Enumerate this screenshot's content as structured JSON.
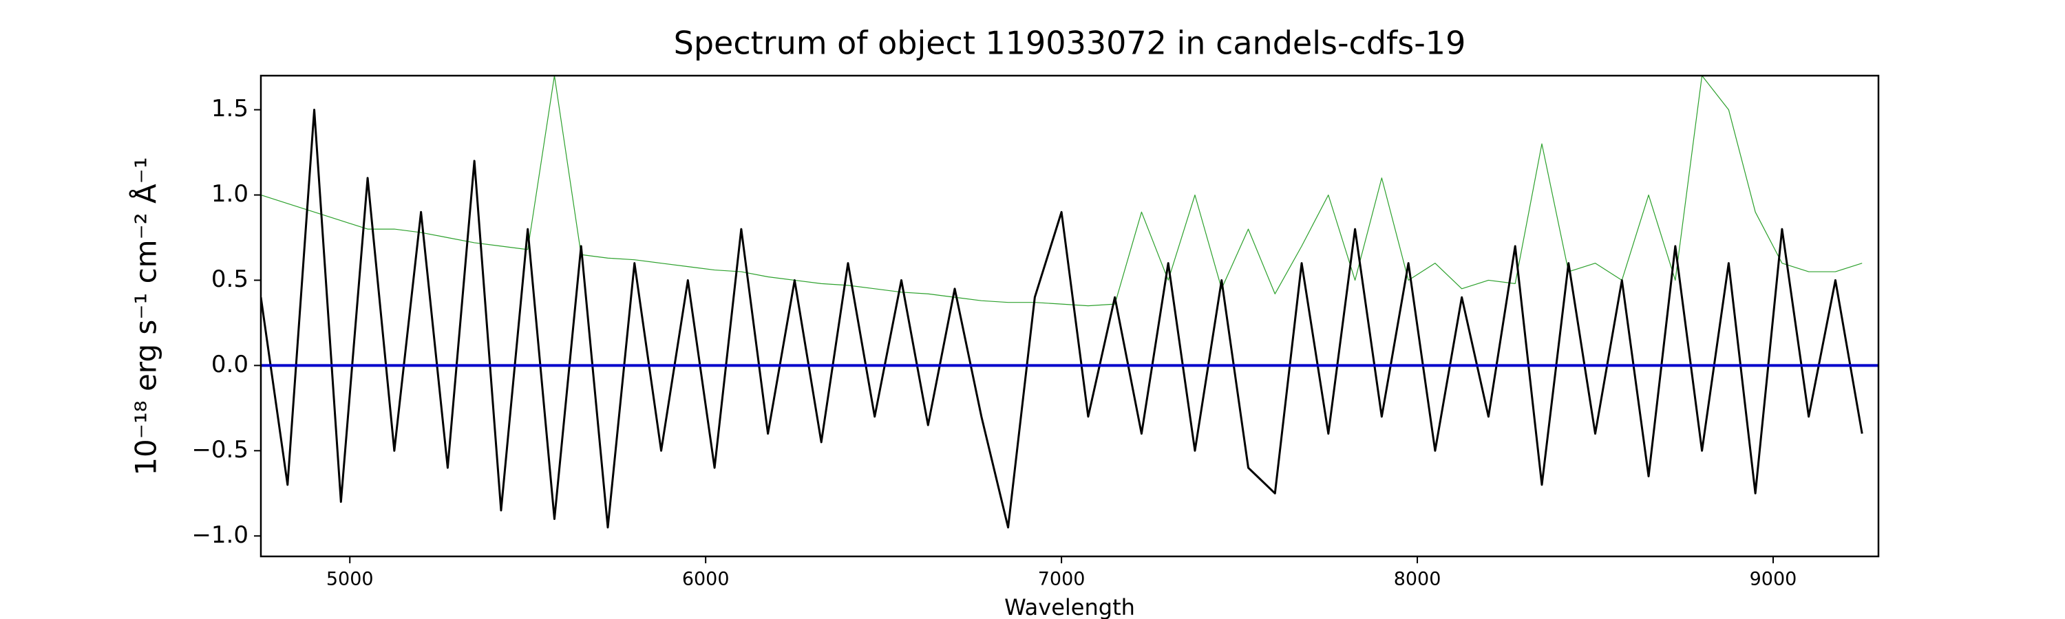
{
  "chart_data": {
    "type": "line",
    "title": "Spectrum of object 119033072 in candels-cdfs-19",
    "xlabel": "Wavelength",
    "ylabel": "10⁻¹⁸ erg s⁻¹ cm⁻² Å⁻¹",
    "x": [
      4750,
      4825,
      4900,
      4975,
      5050,
      5125,
      5200,
      5275,
      5350,
      5425,
      5500,
      5575,
      5650,
      5725,
      5800,
      5875,
      5950,
      6025,
      6100,
      6175,
      6250,
      6325,
      6400,
      6475,
      6550,
      6625,
      6700,
      6775,
      6850,
      6925,
      7000,
      7075,
      7150,
      7225,
      7300,
      7375,
      7450,
      7525,
      7600,
      7675,
      7750,
      7825,
      7900,
      7975,
      8050,
      8125,
      8200,
      8275,
      8350,
      8425,
      8500,
      8575,
      8650,
      8725,
      8800,
      8875,
      8950,
      9025,
      9100,
      9175,
      9250
    ],
    "series": [
      {
        "color": "#2ca02c",
        "width": 1.2,
        "values": [
          1.0,
          0.95,
          0.9,
          0.85,
          0.8,
          0.8,
          0.78,
          0.75,
          0.72,
          0.7,
          0.68,
          1.7,
          0.65,
          0.63,
          0.62,
          0.6,
          0.58,
          0.56,
          0.55,
          0.52,
          0.5,
          0.48,
          0.47,
          0.45,
          0.43,
          0.42,
          0.4,
          0.38,
          0.37,
          0.37,
          0.36,
          0.35,
          0.36,
          0.9,
          0.5,
          1.0,
          0.45,
          0.8,
          0.42,
          0.7,
          1.0,
          0.5,
          1.1,
          0.5,
          0.6,
          0.45,
          0.5,
          0.48,
          1.3,
          0.55,
          0.6,
          0.5,
          1.0,
          0.5,
          1.7,
          1.5,
          0.9,
          0.6,
          0.55,
          0.55,
          0.6
        ]
      },
      {
        "color": "#000000",
        "width": 3,
        "values": [
          0.4,
          -0.7,
          1.5,
          -0.8,
          1.1,
          -0.5,
          0.9,
          -0.6,
          1.2,
          -0.85,
          0.8,
          -0.9,
          0.7,
          -0.95,
          0.6,
          -0.5,
          0.5,
          -0.6,
          0.8,
          -0.4,
          0.5,
          -0.45,
          0.6,
          -0.3,
          0.5,
          -0.35,
          0.45,
          -0.3,
          -0.95,
          0.4,
          0.9,
          -0.3,
          0.4,
          -0.4,
          0.6,
          -0.5,
          0.5,
          -0.6,
          -0.75,
          0.6,
          -0.4,
          0.8,
          -0.3,
          0.6,
          -0.5,
          0.4,
          -0.3,
          0.7,
          -0.7,
          0.6,
          -0.4,
          0.5,
          -0.65,
          0.7,
          -0.5,
          0.6,
          -0.75,
          0.8,
          -0.3,
          0.5,
          -0.4
        ]
      }
    ],
    "hlines": [
      {
        "value": 0,
        "color": "#0000cc"
      }
    ],
    "xlim": [
      4750,
      9296
    ],
    "xticks": [
      5000,
      6000,
      7000,
      8000,
      9000
    ],
    "ylim": [
      -1.12,
      1.7
    ],
    "yticks": [
      {
        "value": -1,
        "label": "−1.0"
      },
      {
        "value": -0.5,
        "label": "−0.5"
      },
      {
        "value": 0,
        "label": "0.0"
      },
      {
        "value": 0.5,
        "label": "0.5"
      },
      {
        "value": 1,
        "label": "1.0"
      },
      {
        "value": 1.5,
        "label": "1.5"
      }
    ],
    "grid": false
  }
}
